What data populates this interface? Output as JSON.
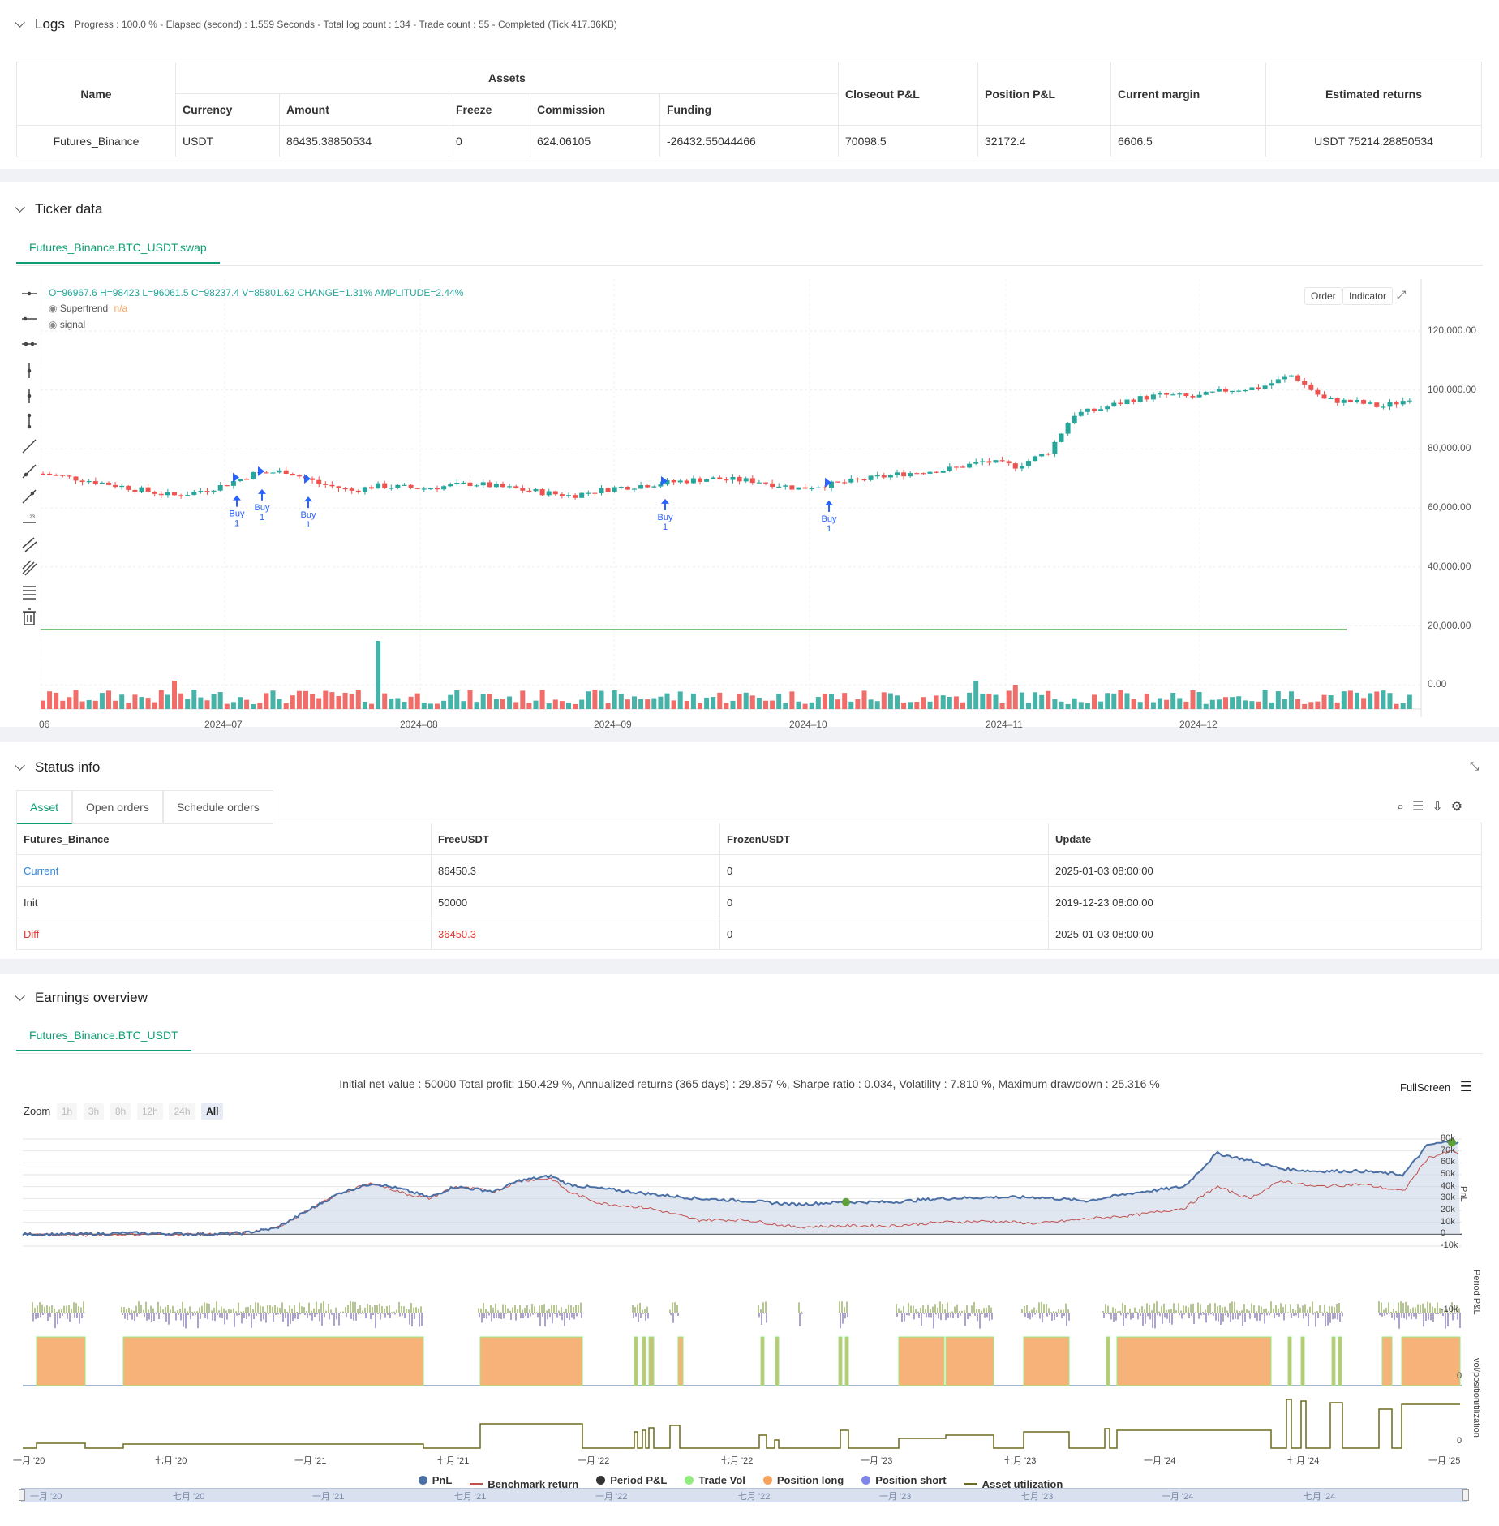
{
  "logs": {
    "title": "Logs",
    "status": "Progress : 100.0 % - Elapsed (second) : 1.559  Seconds - Total log count : 134 - Trade count : 55 - Completed (Tick 417.36KB)",
    "table": {
      "h_name": "Name",
      "h_assets": "Assets",
      "h_closeout": "Closeout P&L",
      "h_position": "Position P&L",
      "h_margin": "Current margin",
      "h_returns": "Estimated returns",
      "sub": [
        "Currency",
        "Amount",
        "Freeze",
        "Commission",
        "Funding"
      ],
      "row": [
        "Futures_Binance",
        "USDT",
        "86435.38850534",
        "0",
        "624.06105",
        "-26432.55044466",
        "70098.5",
        "32172.4",
        "6606.5",
        "USDT 75214.28850534"
      ]
    }
  },
  "ticker": {
    "title": "Ticker data",
    "tab": "Futures_Binance.BTC_USDT.swap",
    "ohlc": "O=96967.6 H=98423 L=96061.5 C=98237.4 V=85801.62 CHANGE=1.31% AMPLITUDE=2.44%",
    "ind1": "Supertrend",
    "ind1_val": "n/a",
    "ind2": "signal",
    "order_btn": "Order",
    "indicator_btn": "Indicator",
    "buy_label": "Buy",
    "buy_qty": "1",
    "y_ticks": [
      "120,000.00",
      "100,000.00",
      "80,000.00",
      "60,000.00",
      "40,000.00",
      "20,000.00",
      "0.00"
    ],
    "x_ticks": [
      "06",
      "2024–07",
      "2024–08",
      "2024–09",
      "2024–10",
      "2024–11",
      "2024–12"
    ],
    "colors": {
      "up": "#26a69a",
      "down": "#ef5350",
      "buy": "#2962ff",
      "signal": "#4caf50"
    }
  },
  "status": {
    "title": "Status info",
    "tabs": [
      "Asset",
      "Open orders",
      "Schedule orders"
    ],
    "headers": [
      "Futures_Binance",
      "FreeUSDT",
      "FrozenUSDT",
      "Update"
    ],
    "rows": [
      [
        "Current",
        "86450.3",
        "0",
        "2025-01-03 08:00:00"
      ],
      [
        "Init",
        "50000",
        "0",
        "2019-12-23 08:00:00"
      ],
      [
        "Diff",
        "36450.3",
        "0",
        "2025-01-03 08:00:00"
      ]
    ]
  },
  "earnings": {
    "title": "Earnings overview",
    "tab": "Futures_Binance.BTC_USDT",
    "summary": "Initial net value : 50000 Total profit: 150.429 %, Annualized returns (365 days) : 29.857 %, Sharpe ratio : 0.034, Volatility : 7.810 %, Maximum drawdown : 25.316 %",
    "fullscreen": "FullScreen",
    "zoom_label": "Zoom",
    "zoom_opts": [
      "1h",
      "3h",
      "8h",
      "12h",
      "24h",
      "All"
    ],
    "pnl_ticks": [
      "80k",
      "70k",
      "60k",
      "50k",
      "40k",
      "30k",
      "20k",
      "10k",
      "0",
      "-10k"
    ],
    "period_tick": "-10k",
    "pos_tick": "0",
    "util_tick": "0",
    "axis_titles": [
      "PnL",
      "Period P&L",
      "vol/position",
      "utilization"
    ],
    "x_ticks": [
      "一月 '20",
      "七月 '20",
      "一月 '21",
      "七月 '21",
      "一月 '22",
      "七月 '22",
      "一月 '23",
      "七月 '23",
      "一月 '24",
      "七月 '24",
      "一月 '25"
    ],
    "nav_ticks": [
      "一月 '20",
      "七月 '20",
      "一月 '21",
      "七月 '21",
      "一月 '22",
      "七月 '22",
      "一月 '23",
      "七月 '23",
      "一月 '24",
      "七月 '24"
    ],
    "legend": [
      {
        "name": "PnL",
        "color": "#4a6fa5",
        "kind": "dot"
      },
      {
        "name": "Benchmark return",
        "color": "#c0504d",
        "kind": "line"
      },
      {
        "name": "Period P&L",
        "color": "#333333",
        "kind": "dot"
      },
      {
        "name": "Trade Vol",
        "color": "#90ed7d",
        "kind": "dot"
      },
      {
        "name": "Position long",
        "color": "#f7a35c",
        "kind": "dot"
      },
      {
        "name": "Position short",
        "color": "#8085e9",
        "kind": "dot"
      },
      {
        "name": "Asset utilization",
        "color": "#6b6b1f",
        "kind": "line"
      }
    ]
  }
}
